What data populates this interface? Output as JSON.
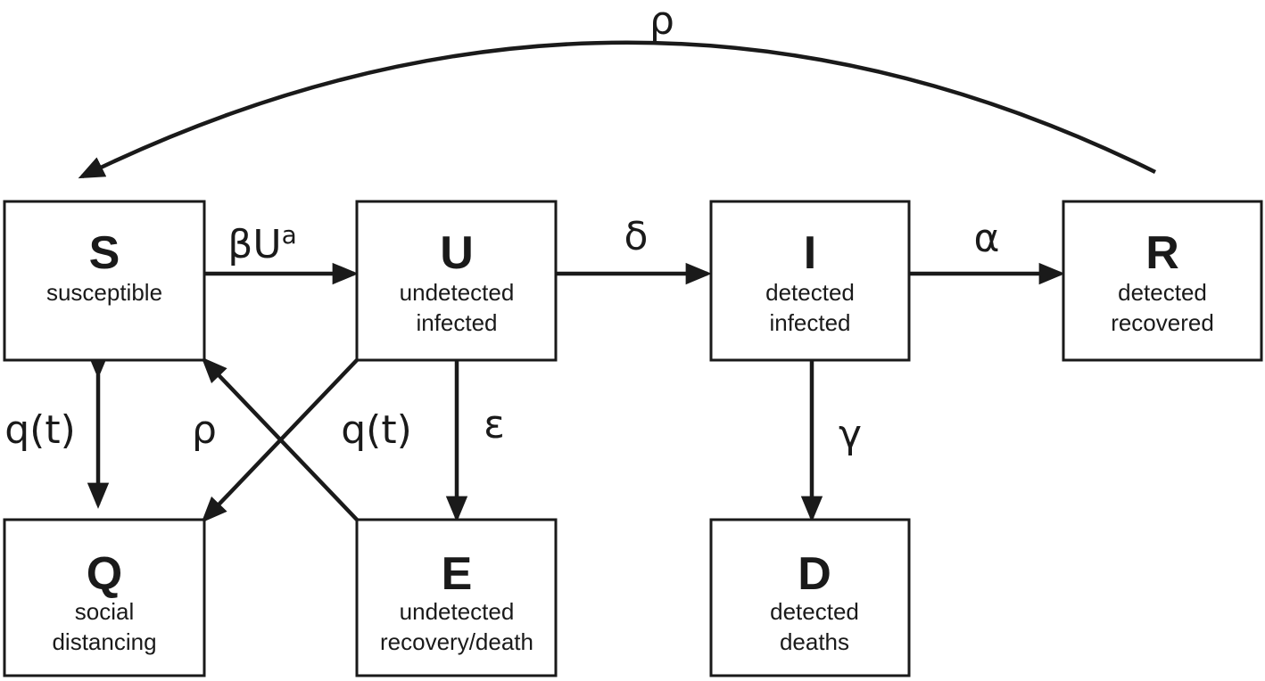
{
  "compartments": {
    "S": {
      "letter": "S",
      "line1": "susceptible",
      "line2": ""
    },
    "U": {
      "letter": "U",
      "line1": "undetected",
      "line2": "infected"
    },
    "I": {
      "letter": "I",
      "line1": "detected",
      "line2": "infected"
    },
    "R": {
      "letter": "R",
      "line1": "detected",
      "line2": "recovered"
    },
    "Q": {
      "letter": "Q",
      "line1": "social",
      "line2": "distancing"
    },
    "E": {
      "letter": "E",
      "line1": "undetected",
      "line2": "recovery/death"
    },
    "D": {
      "letter": "D",
      "line1": "detected",
      "line2": "deaths"
    }
  },
  "rates": {
    "r_to_s": "ρ",
    "s_to_u_base": "βU",
    "s_to_u_exp": "a",
    "u_to_i": "δ",
    "i_to_r": "α",
    "s_q": "q(t)",
    "e_to_s": "ρ",
    "u_to_q": "q(t)",
    "u_to_e": "ε",
    "i_to_d": "γ"
  }
}
